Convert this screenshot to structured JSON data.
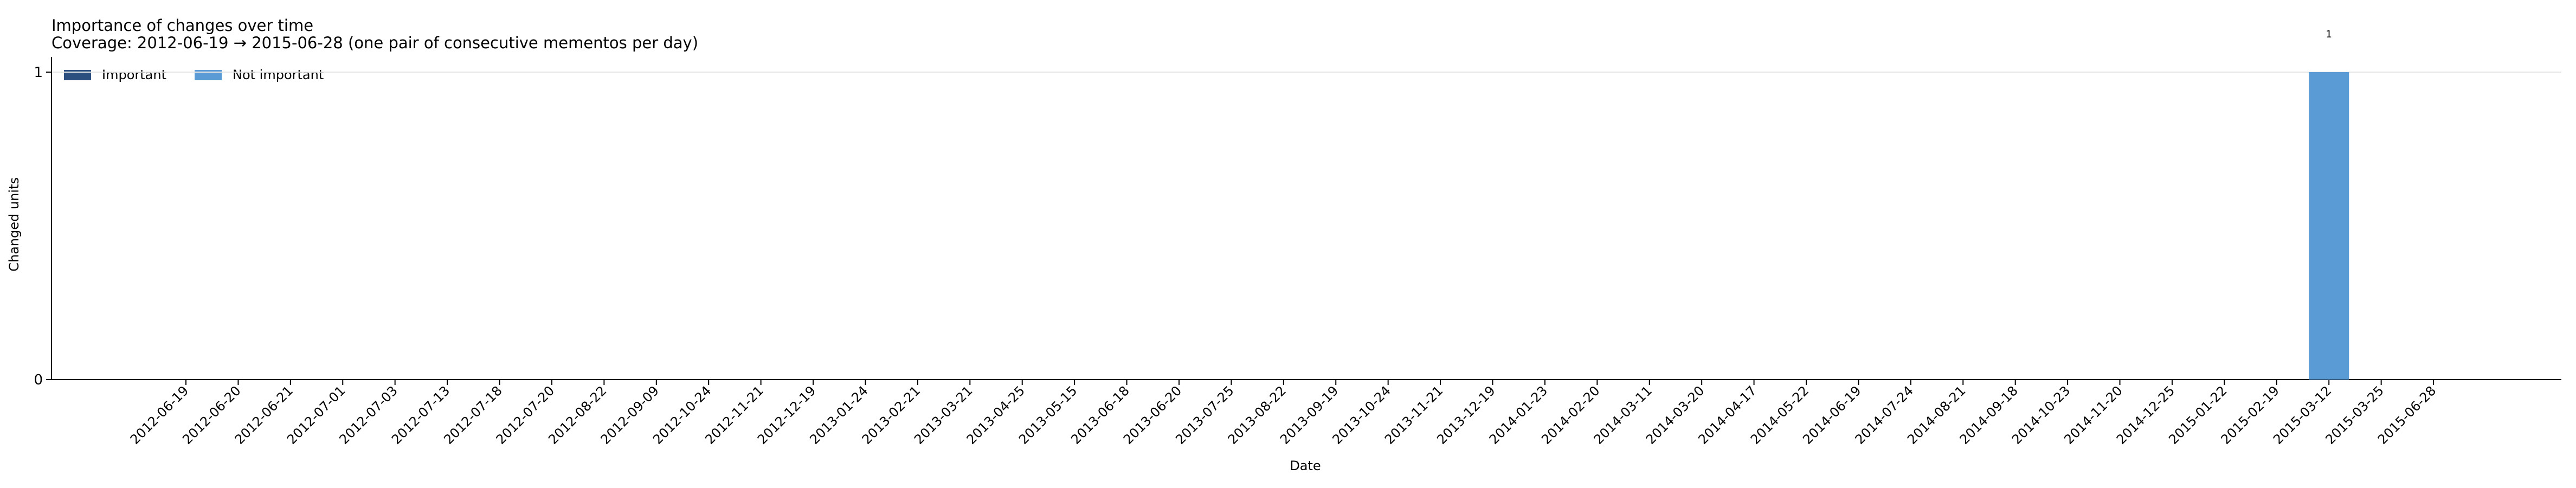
{
  "chart_data": {
    "type": "bar",
    "title": "Importance of changes over time",
    "subtitle": "Coverage: 2012-06-19 → 2015-06-28 (one pair of consecutive mementos per day)",
    "xlabel": "Date",
    "ylabel": "Changed units",
    "ylim": [
      0,
      1
    ],
    "yticks": [
      0,
      1
    ],
    "grid": "y-major",
    "legend_position": "top-left",
    "stacked": true,
    "categories": [
      "2012-06-19",
      "2012-06-20",
      "2012-06-21",
      "2012-07-01",
      "2012-07-03",
      "2012-07-13",
      "2012-07-18",
      "2012-07-20",
      "2012-08-22",
      "2012-09-09",
      "2012-10-24",
      "2012-11-21",
      "2012-12-19",
      "2013-01-24",
      "2013-02-21",
      "2013-03-21",
      "2013-04-25",
      "2013-05-15",
      "2013-06-18",
      "2013-06-20",
      "2013-07-25",
      "2013-08-22",
      "2013-09-19",
      "2013-10-24",
      "2013-11-21",
      "2013-12-19",
      "2014-01-23",
      "2014-02-20",
      "2014-03-11",
      "2014-03-20",
      "2014-04-17",
      "2014-05-22",
      "2014-06-19",
      "2014-07-24",
      "2014-08-21",
      "2014-09-18",
      "2014-10-23",
      "2014-11-20",
      "2014-12-25",
      "2015-01-22",
      "2015-02-19",
      "2015-03-12",
      "2015-03-25",
      "2015-06-28"
    ],
    "series": [
      {
        "name": "Important",
        "color": "#2b4f7e",
        "values": [
          0,
          0,
          0,
          0,
          0,
          0,
          0,
          0,
          0,
          0,
          0,
          0,
          0,
          0,
          0,
          0,
          0,
          0,
          0,
          0,
          0,
          0,
          0,
          0,
          0,
          0,
          0,
          0,
          0,
          0,
          0,
          0,
          0,
          0,
          0,
          0,
          0,
          0,
          0,
          0,
          0,
          0,
          0,
          0
        ]
      },
      {
        "name": "Not important",
        "color": "#5b9bd5",
        "values": [
          0,
          0,
          0,
          0,
          0,
          0,
          0,
          0,
          0,
          0,
          0,
          0,
          0,
          0,
          0,
          0,
          0,
          0,
          0,
          0,
          0,
          0,
          0,
          0,
          0,
          0,
          0,
          0,
          0,
          0,
          0,
          0,
          0,
          0,
          0,
          0,
          0,
          0,
          0,
          0,
          0,
          1,
          0,
          0
        ]
      }
    ],
    "data_labels": [
      {
        "category": "2015-03-12",
        "text": "1"
      }
    ]
  }
}
